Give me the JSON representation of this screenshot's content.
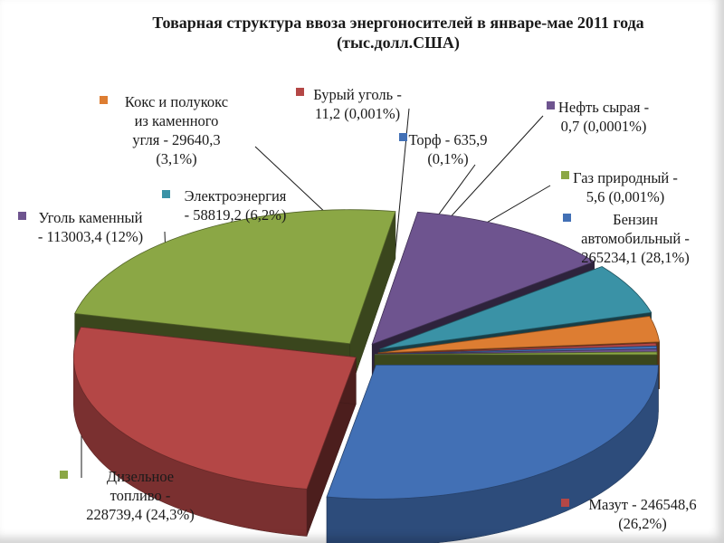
{
  "chart_data": {
    "type": "pie",
    "title_lines": [
      "Товарная структура ввоза энергоносителей в январе-мае 2011 года",
      "(тыс.долл.США)"
    ],
    "unit": "тыс.долл.США",
    "start_angle_deg": 0,
    "direction": "clockwise",
    "style": "3d-exploded",
    "legend": "none",
    "slices": [
      {
        "name": "Бензин автомобильный",
        "value": 265234.1,
        "percent": "28,1%",
        "color": "#4270b5",
        "label_lines": [
          "Бензин",
          "автомобильный -",
          "265234,1 (28,1%)"
        ]
      },
      {
        "name": "Мазут",
        "value": 246548.6,
        "percent": "26,2%",
        "color": "#b44746",
        "label_lines": [
          "Мазут - 246548,6",
          "(26,2%)"
        ]
      },
      {
        "name": "Дизельное топливо",
        "value": 228739.4,
        "percent": "24,3%",
        "color": "#8ba745",
        "label_lines": [
          "Дизельное",
          "топливо -",
          "228739,4 (24,3%)"
        ]
      },
      {
        "name": "Уголь каменный",
        "value": 113003.4,
        "percent": "12%",
        "color": "#6e548f",
        "label_lines": [
          "Уголь каменный",
          "- 113003,4 (12%)"
        ]
      },
      {
        "name": "Электроэнергия",
        "value": 58819.2,
        "percent": "6,2%",
        "color": "#3a92a6",
        "label_lines": [
          "Электроэнергия",
          "- 58819,2 (6,2%)"
        ]
      },
      {
        "name": "Кокс и полукокс из каменного угля",
        "value": 29640.3,
        "percent": "3,1%",
        "color": "#dd7d32",
        "label_lines": [
          "Кокс и полукокс",
          "из каменного",
          "угля - 29640,3",
          "(3,1%)"
        ]
      },
      {
        "name": "Бурый уголь",
        "value": 11.2,
        "percent": "0,001%",
        "color": "#b44746",
        "label_lines": [
          "Бурый уголь -",
          "11,2 (0,001%)"
        ]
      },
      {
        "name": "Торф",
        "value": 635.9,
        "percent": "0,1%",
        "color": "#4270b5",
        "label_lines": [
          "Торф - 635,9",
          "(0,1%)"
        ]
      },
      {
        "name": "Нефть сырая",
        "value": 0.7,
        "percent": "0,0001%",
        "color": "#6e548f",
        "label_lines": [
          "Нефть сырая -",
          "0,7 (0,0001%)"
        ]
      },
      {
        "name": "Газ природный",
        "value": 5.6,
        "percent": "0,001%",
        "color": "#8ba745",
        "label_lines": [
          "Газ природный -",
          "5,6 (0,001%)"
        ]
      }
    ]
  }
}
